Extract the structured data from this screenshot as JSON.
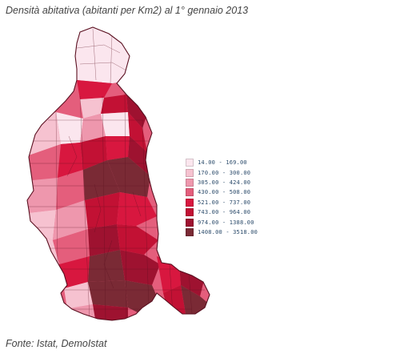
{
  "title": "Densità abitativa (abitanti per Km2) al 1° gennaio 2013",
  "source": "Fonte: Istat, DemoIstat",
  "legend": [
    {
      "label": "14.00 - 169.00",
      "color": "#fbe6ee"
    },
    {
      "label": "170.00 - 300.00",
      "color": "#f6c2d0"
    },
    {
      "label": "305.00 - 424.00",
      "color": "#ee97ad"
    },
    {
      "label": "430.00 - 508.00",
      "color": "#e45e7c"
    },
    {
      "label": "521.00 - 737.00",
      "color": "#d8173f"
    },
    {
      "label": "743.00 - 964.00",
      "color": "#c21134"
    },
    {
      "label": "974.00 - 1388.00",
      "color": "#9e1230"
    },
    {
      "label": "1408.00 - 3518.00",
      "color": "#7a2a35"
    }
  ],
  "border_color": "#5a1020"
}
